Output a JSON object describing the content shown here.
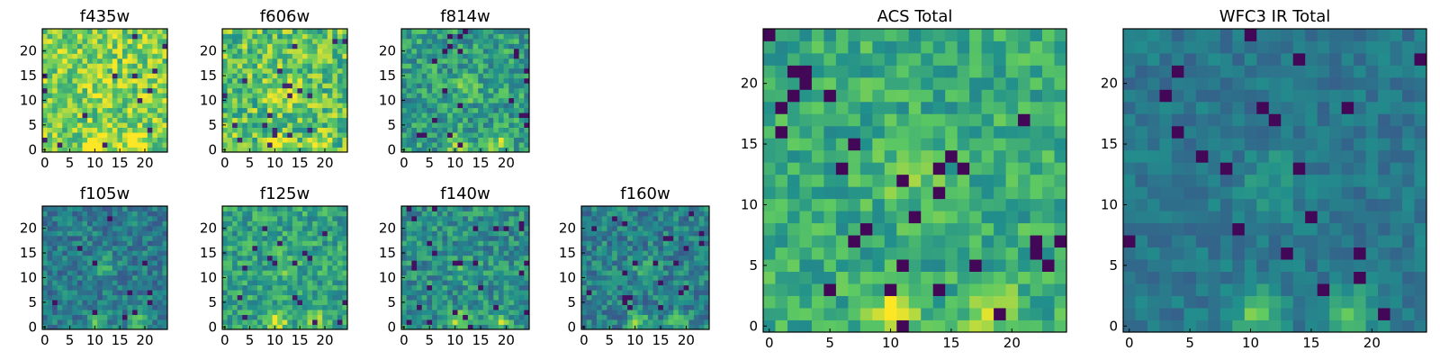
{
  "figure": {
    "colormap": "viridis",
    "colormap_stops": [
      "#440154",
      "#3b528b",
      "#21908c",
      "#5dc962",
      "#fde725"
    ],
    "frame_color": "#000000"
  },
  "chart_data": [
    {
      "type": "heatmap",
      "title": "f435w",
      "grid": [
        25,
        25
      ],
      "xlim": [
        0,
        24
      ],
      "ylim": [
        0,
        24
      ],
      "xticks": [
        "0",
        "5",
        "10",
        "15",
        "20"
      ],
      "yticks": [
        "0",
        "5",
        "10",
        "15",
        "20"
      ],
      "palette": {
        "mean": 0.78,
        "spread": 0.22,
        "floor": 0.1
      }
    },
    {
      "type": "heatmap",
      "title": "f606w",
      "grid": [
        25,
        25
      ],
      "xlim": [
        0,
        24
      ],
      "ylim": [
        0,
        24
      ],
      "xticks": [
        "0",
        "5",
        "10",
        "15",
        "20"
      ],
      "yticks": [
        "0",
        "5",
        "10",
        "15",
        "20"
      ],
      "palette": {
        "mean": 0.72,
        "spread": 0.24,
        "floor": 0.12
      }
    },
    {
      "type": "heatmap",
      "title": "f814w",
      "grid": [
        25,
        25
      ],
      "xlim": [
        0,
        24
      ],
      "ylim": [
        0,
        24
      ],
      "xticks": [
        "0",
        "5",
        "10",
        "15",
        "20"
      ],
      "yticks": [
        "0",
        "5",
        "10",
        "15",
        "20"
      ],
      "palette": {
        "mean": 0.56,
        "spread": 0.2,
        "floor": 0.05
      }
    },
    {
      "type": "heatmap",
      "title": "f105w",
      "grid": [
        25,
        25
      ],
      "xlim": [
        0,
        24
      ],
      "ylim": [
        0,
        24
      ],
      "xticks": [
        "0",
        "5",
        "10",
        "15",
        "20"
      ],
      "yticks": [
        "0",
        "5",
        "10",
        "15",
        "20"
      ],
      "palette": {
        "mean": 0.42,
        "spread": 0.16,
        "floor": 0.05
      }
    },
    {
      "type": "heatmap",
      "title": "f125w",
      "grid": [
        25,
        25
      ],
      "xlim": [
        0,
        24
      ],
      "ylim": [
        0,
        24
      ],
      "xticks": [
        "0",
        "5",
        "10",
        "15",
        "20"
      ],
      "yticks": [
        "0",
        "5",
        "10",
        "15",
        "20"
      ],
      "palette": {
        "mean": 0.58,
        "spread": 0.18,
        "floor": 0.08
      }
    },
    {
      "type": "heatmap",
      "title": "f140w",
      "grid": [
        25,
        25
      ],
      "xlim": [
        0,
        24
      ],
      "ylim": [
        0,
        24
      ],
      "xticks": [
        "0",
        "5",
        "10",
        "15",
        "20"
      ],
      "yticks": [
        "0",
        "5",
        "10",
        "15",
        "20"
      ],
      "palette": {
        "mean": 0.5,
        "spread": 0.18,
        "floor": 0.05
      }
    },
    {
      "type": "heatmap",
      "title": "f160w",
      "grid": [
        25,
        25
      ],
      "xlim": [
        0,
        24
      ],
      "ylim": [
        0,
        24
      ],
      "xticks": [
        "0",
        "5",
        "10",
        "15",
        "20"
      ],
      "yticks": [
        "0",
        "5",
        "10",
        "15",
        "20"
      ],
      "palette": {
        "mean": 0.44,
        "spread": 0.17,
        "floor": 0.05
      }
    },
    {
      "type": "heatmap",
      "title": "ACS Total",
      "grid": [
        25,
        25
      ],
      "xlim": [
        0,
        24
      ],
      "ylim": [
        0,
        24
      ],
      "xticks": [
        "0",
        "5",
        "10",
        "15",
        "20"
      ],
      "yticks": [
        "0",
        "5",
        "10",
        "15",
        "20"
      ],
      "palette": {
        "mean": 0.62,
        "spread": 0.16,
        "floor": 0.02
      }
    },
    {
      "type": "heatmap",
      "title": "WFC3 IR Total",
      "grid": [
        25,
        25
      ],
      "xlim": [
        0,
        24
      ],
      "ylim": [
        0,
        24
      ],
      "xticks": [
        "0",
        "5",
        "10",
        "15",
        "20"
      ],
      "yticks": [
        "0",
        "5",
        "10",
        "15",
        "20"
      ],
      "palette": {
        "mean": 0.4,
        "spread": 0.09,
        "floor": 0.02
      }
    }
  ]
}
